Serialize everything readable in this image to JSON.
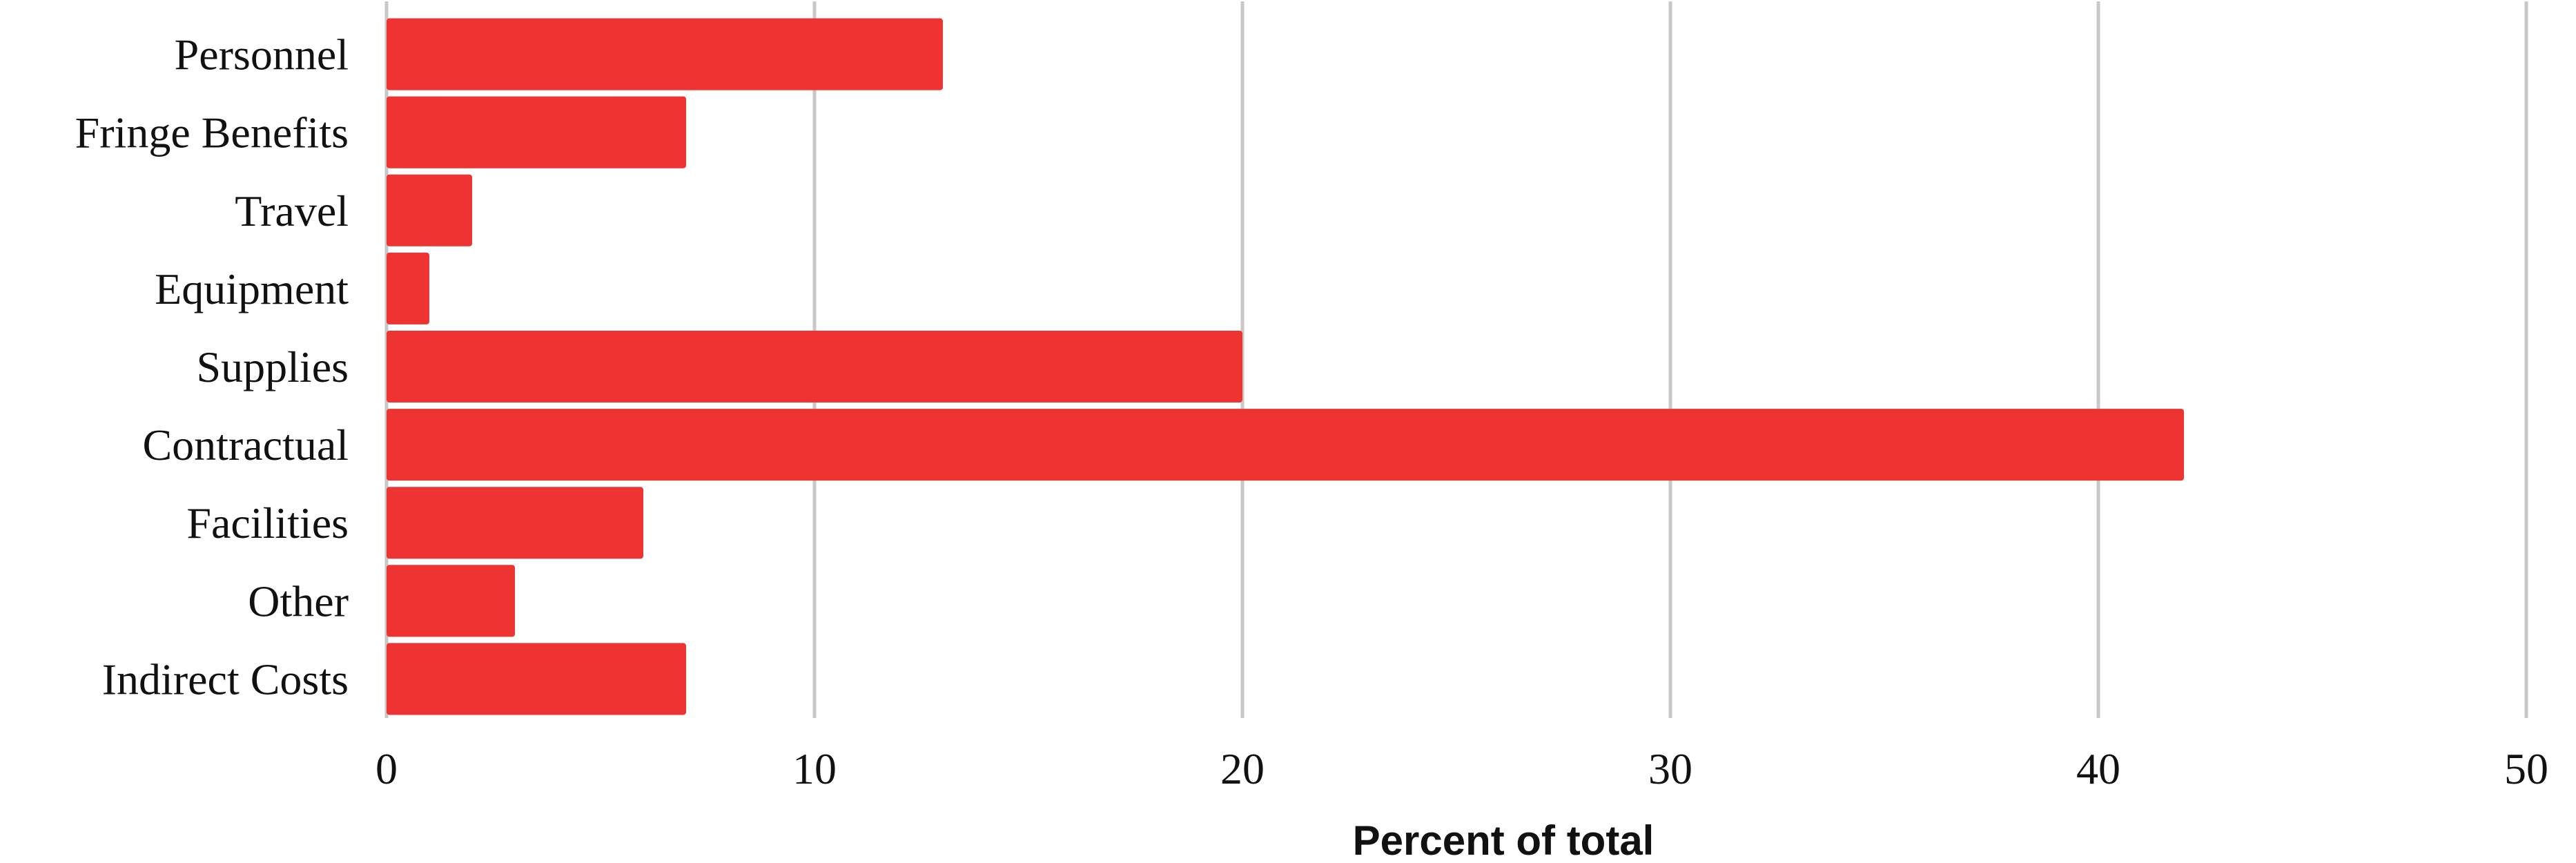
{
  "chart_data": {
    "type": "bar",
    "orientation": "horizontal",
    "categories": [
      "Personnel",
      "Fringe Benefits",
      "Travel",
      "Equipment",
      "Supplies",
      "Contractual",
      "Facilities",
      "Other",
      "Indirect Costs"
    ],
    "values": [
      13,
      7,
      2,
      1,
      20,
      42,
      6,
      3,
      7
    ],
    "xlabel": "Percent of total",
    "ylabel": "",
    "title": "",
    "xlim": [
      0,
      50
    ],
    "xticks": [
      "0",
      "10",
      "20",
      "30",
      "40",
      "50"
    ],
    "grid": "vertical",
    "legend": "none",
    "bar_color": "#ee3433",
    "grid_color": "#c8c8c8"
  }
}
